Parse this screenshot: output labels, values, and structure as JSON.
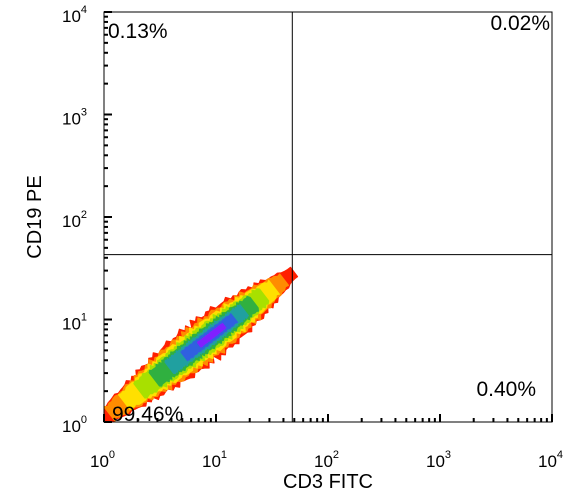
{
  "chart_data": {
    "type": "heatmap",
    "xlabel": "CD3 FITC",
    "ylabel": "CD19 PE",
    "xscale": "log",
    "yscale": "log",
    "xlim": [
      1,
      10000
    ],
    "ylim": [
      1,
      10000
    ],
    "x_ticks": [
      {
        "base": "10",
        "exp": "0",
        "value": 1
      },
      {
        "base": "10",
        "exp": "1",
        "value": 10
      },
      {
        "base": "10",
        "exp": "2",
        "value": 100
      },
      {
        "base": "10",
        "exp": "3",
        "value": 1000
      },
      {
        "base": "10",
        "exp": "4",
        "value": 10000
      }
    ],
    "y_ticks": [
      {
        "base": "10",
        "exp": "0",
        "value": 1
      },
      {
        "base": "10",
        "exp": "1",
        "value": 10
      },
      {
        "base": "10",
        "exp": "2",
        "value": 100
      },
      {
        "base": "10",
        "exp": "3",
        "value": 1000
      },
      {
        "base": "10",
        "exp": "4",
        "value": 10000
      }
    ],
    "gate": {
      "x": 48,
      "y": 43
    },
    "quadrants": {
      "upper_left": "0.13%",
      "upper_right": "0.02%",
      "lower_left": "99.46%",
      "lower_right": "0.40%"
    },
    "density_colors": [
      "#ff2000",
      "#ff8c00",
      "#ffe000",
      "#a8e000",
      "#30b040",
      "#20a0a0",
      "#3060e0",
      "#8020ff"
    ],
    "grid": false,
    "legend": "none"
  }
}
